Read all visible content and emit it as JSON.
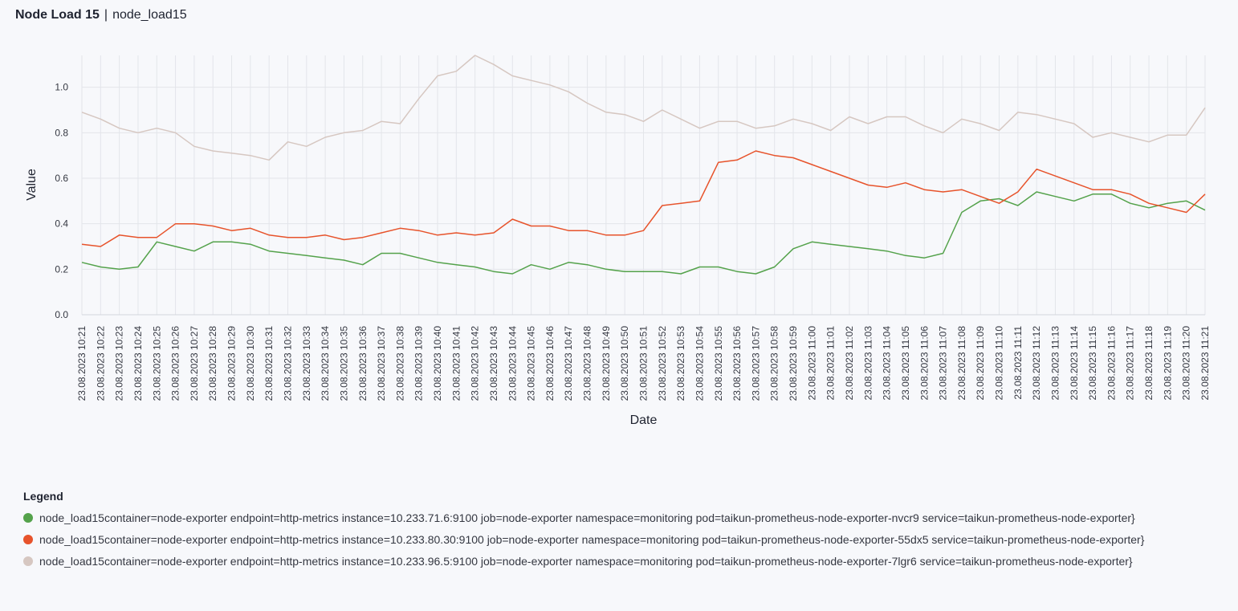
{
  "header": {
    "name": "Node Load 15",
    "separator": "|",
    "metric": "node_load15"
  },
  "chart_data": {
    "type": "line",
    "xlabel": "Date",
    "ylabel": "Value",
    "ylim": [
      0,
      1.14
    ],
    "yticks": [
      "0.0",
      "0.2",
      "0.4",
      "0.6",
      "0.8",
      "1.0"
    ],
    "grid": true,
    "categories": [
      "23.08.2023 10:21",
      "23.08.2023 10:22",
      "23.08.2023 10:23",
      "23.08.2023 10:24",
      "23.08.2023 10:25",
      "23.08.2023 10:26",
      "23.08.2023 10:27",
      "23.08.2023 10:28",
      "23.08.2023 10:29",
      "23.08.2023 10:30",
      "23.08.2023 10:31",
      "23.08.2023 10:32",
      "23.08.2023 10:33",
      "23.08.2023 10:34",
      "23.08.2023 10:35",
      "23.08.2023 10:36",
      "23.08.2023 10:37",
      "23.08.2023 10:38",
      "23.08.2023 10:39",
      "23.08.2023 10:40",
      "23.08.2023 10:41",
      "23.08.2023 10:42",
      "23.08.2023 10:43",
      "23.08.2023 10:44",
      "23.08.2023 10:45",
      "23.08.2023 10:46",
      "23.08.2023 10:47",
      "23.08.2023 10:48",
      "23.08.2023 10:49",
      "23.08.2023 10:50",
      "23.08.2023 10:51",
      "23.08.2023 10:52",
      "23.08.2023 10:53",
      "23.08.2023 10:54",
      "23.08.2023 10:55",
      "23.08.2023 10:56",
      "23.08.2023 10:57",
      "23.08.2023 10:58",
      "23.08.2023 10:59",
      "23.08.2023 11:00",
      "23.08.2023 11:01",
      "23.08.2023 11:02",
      "23.08.2023 11:03",
      "23.08.2023 11:04",
      "23.08.2023 11:05",
      "23.08.2023 11:06",
      "23.08.2023 11:07",
      "23.08.2023 11:08",
      "23.08.2023 11:09",
      "23.08.2023 11:10",
      "23.08.2023 11:11",
      "23.08.2023 11:12",
      "23.08.2023 11:13",
      "23.08.2023 11:14",
      "23.08.2023 11:15",
      "23.08.2023 11:16",
      "23.08.2023 11:17",
      "23.08.2023 11:18",
      "23.08.2023 11:19",
      "23.08.2023 11:20",
      "23.08.2023 11:21"
    ],
    "series": [
      {
        "color": "#54a24b",
        "values": [
          0.23,
          0.21,
          0.2,
          0.21,
          0.32,
          0.3,
          0.28,
          0.32,
          0.32,
          0.31,
          0.28,
          0.27,
          0.26,
          0.25,
          0.24,
          0.22,
          0.27,
          0.27,
          0.25,
          0.23,
          0.22,
          0.21,
          0.19,
          0.18,
          0.22,
          0.2,
          0.23,
          0.22,
          0.2,
          0.19,
          0.19,
          0.19,
          0.18,
          0.21,
          0.21,
          0.19,
          0.18,
          0.21,
          0.29,
          0.32,
          0.31,
          0.3,
          0.29,
          0.28,
          0.26,
          0.25,
          0.27,
          0.45,
          0.5,
          0.51,
          0.48,
          0.54,
          0.52,
          0.5,
          0.53,
          0.53,
          0.49,
          0.47,
          0.49,
          0.5,
          0.46
        ]
      },
      {
        "color": "#e7532b",
        "values": [
          0.31,
          0.3,
          0.35,
          0.34,
          0.34,
          0.4,
          0.4,
          0.39,
          0.37,
          0.38,
          0.35,
          0.34,
          0.34,
          0.35,
          0.33,
          0.34,
          0.36,
          0.38,
          0.37,
          0.35,
          0.36,
          0.35,
          0.36,
          0.42,
          0.39,
          0.39,
          0.37,
          0.37,
          0.35,
          0.35,
          0.37,
          0.48,
          0.49,
          0.5,
          0.67,
          0.68,
          0.72,
          0.7,
          0.69,
          0.66,
          0.63,
          0.6,
          0.57,
          0.56,
          0.58,
          0.55,
          0.54,
          0.55,
          0.52,
          0.49,
          0.54,
          0.64,
          0.61,
          0.58,
          0.55,
          0.55,
          0.53,
          0.49,
          0.47,
          0.45,
          0.53
        ]
      },
      {
        "color": "#d6c7c1",
        "values": [
          0.89,
          0.86,
          0.82,
          0.8,
          0.82,
          0.8,
          0.74,
          0.72,
          0.71,
          0.7,
          0.68,
          0.76,
          0.74,
          0.78,
          0.8,
          0.81,
          0.85,
          0.84,
          0.95,
          1.05,
          1.07,
          1.14,
          1.1,
          1.05,
          1.03,
          1.01,
          0.98,
          0.93,
          0.89,
          0.88,
          0.85,
          0.9,
          0.86,
          0.82,
          0.85,
          0.85,
          0.82,
          0.83,
          0.86,
          0.84,
          0.81,
          0.87,
          0.84,
          0.87,
          0.87,
          0.83,
          0.8,
          0.86,
          0.84,
          0.81,
          0.89,
          0.88,
          0.86,
          0.84,
          0.78,
          0.8,
          0.78,
          0.76,
          0.79,
          0.79,
          0.91
        ]
      }
    ]
  },
  "legend": {
    "title": "Legend",
    "items": [
      {
        "color": "#54a24b",
        "label": "node_load15container=node-exporter endpoint=http-metrics instance=10.233.71.6:9100 job=node-exporter namespace=monitoring pod=taikun-prometheus-node-exporter-nvcr9 service=taikun-prometheus-node-exporter}"
      },
      {
        "color": "#e7532b",
        "label": "node_load15container=node-exporter endpoint=http-metrics instance=10.233.80.30:9100 job=node-exporter namespace=monitoring pod=taikun-prometheus-node-exporter-55dx5 service=taikun-prometheus-node-exporter}"
      },
      {
        "color": "#d6c7c1",
        "label": "node_load15container=node-exporter endpoint=http-metrics instance=10.233.96.5:9100 job=node-exporter namespace=monitoring pod=taikun-prometheus-node-exporter-7lgr6 service=taikun-prometheus-node-exporter}"
      }
    ]
  }
}
